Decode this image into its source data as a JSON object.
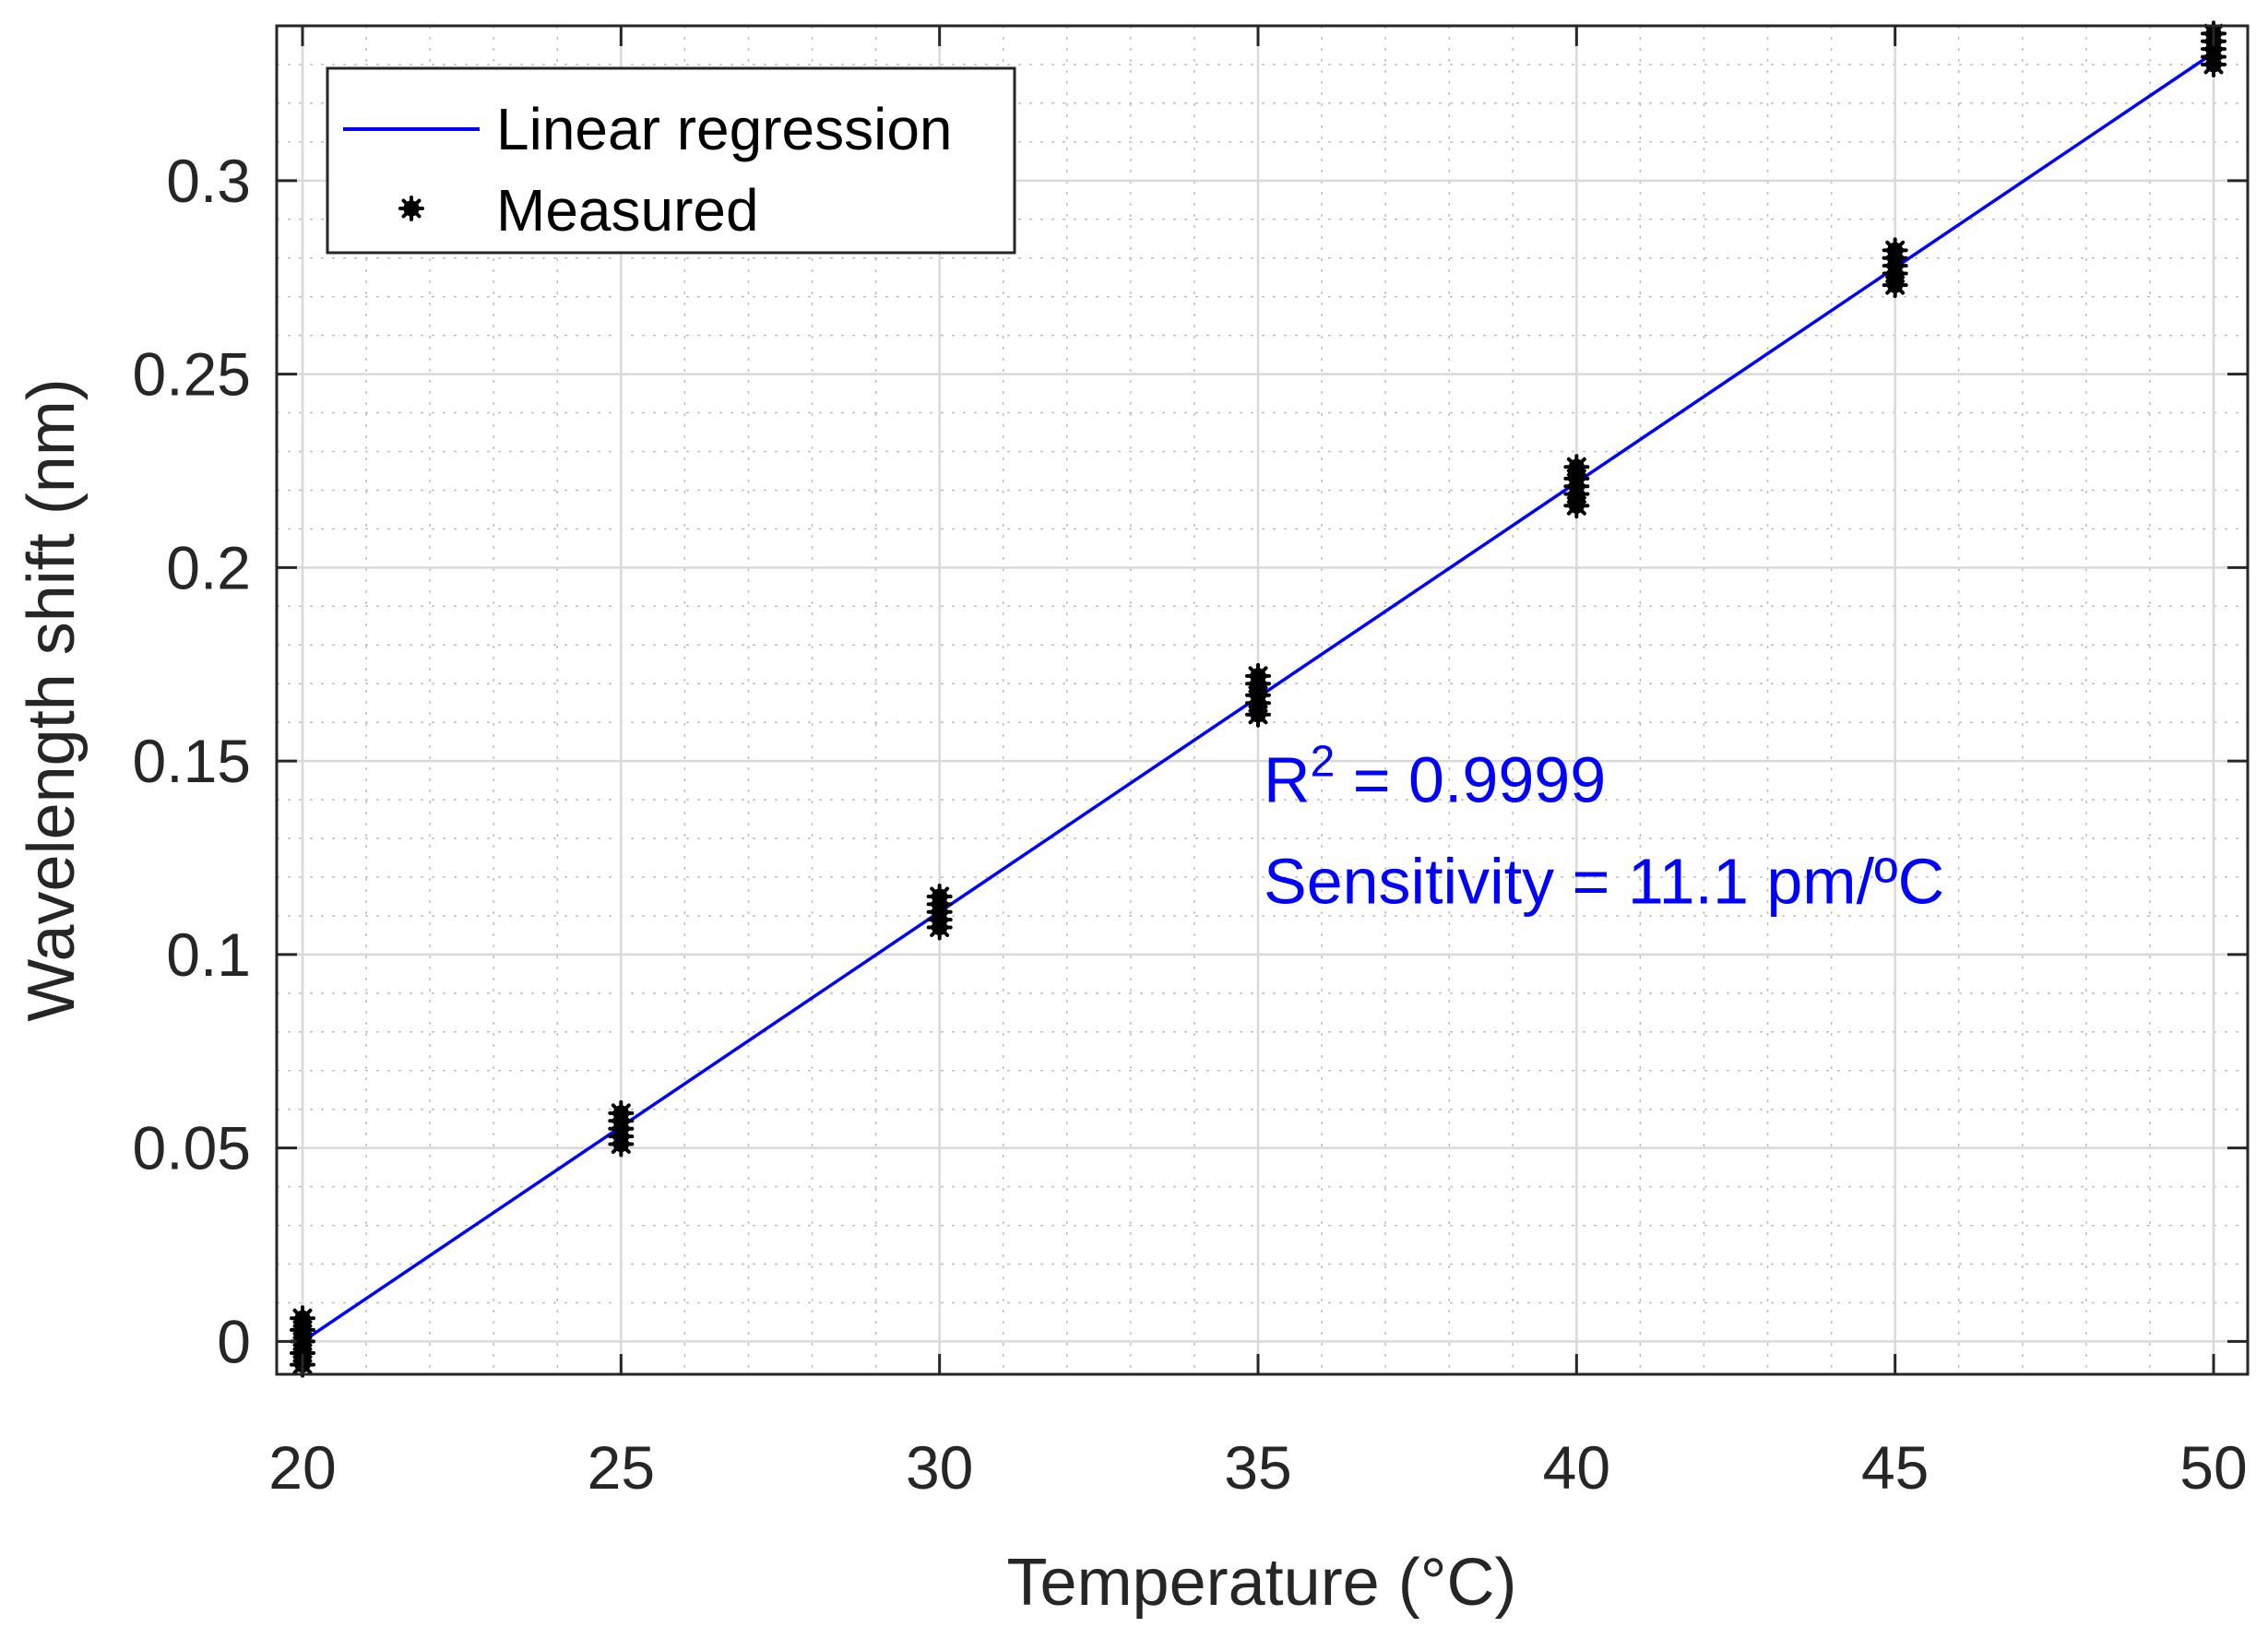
{
  "chart_data": {
    "type": "scatter",
    "title": "",
    "xlabel": "Temperature (°C)",
    "ylabel": "Wavelength shift (nm)",
    "xlim": [
      20,
      50
    ],
    "ylim": [
      -0.008,
      0.34
    ],
    "x_ticks": [
      20,
      25,
      30,
      35,
      40,
      45,
      50
    ],
    "y_ticks": [
      0,
      0.05,
      0.1,
      0.15,
      0.2,
      0.25,
      0.3
    ],
    "x_tick_labels": [
      "20",
      "25",
      "30",
      "35",
      "40",
      "45",
      "50"
    ],
    "y_tick_labels": [
      "0",
      "0.05",
      "0.1",
      "0.15",
      "0.2",
      "0.25",
      "0.3"
    ],
    "grid": true,
    "minor_grid": true,
    "legend_position": "top-left",
    "series": [
      {
        "name": "Linear regression",
        "kind": "line",
        "color": "#0000ff",
        "x": [
          20,
          50
        ],
        "y": [
          0.0,
          0.333
        ]
      },
      {
        "name": "Measured",
        "kind": "scatter",
        "marker": "asterisk",
        "color": "#000000",
        "x": [
          20,
          20,
          20,
          20,
          20,
          25,
          25,
          25,
          25,
          25,
          30,
          30,
          30,
          30,
          30,
          35,
          35,
          35,
          35,
          35,
          40,
          40,
          40,
          40,
          40,
          45,
          45,
          45,
          45,
          45,
          50,
          50,
          50,
          50,
          50
        ],
        "y": [
          -0.006,
          -0.003,
          0.0,
          0.003,
          0.006,
          0.051,
          0.053,
          0.055,
          0.057,
          0.059,
          0.107,
          0.109,
          0.111,
          0.113,
          0.115,
          0.162,
          0.165,
          0.167,
          0.17,
          0.172,
          0.216,
          0.219,
          0.221,
          0.223,
          0.226,
          0.273,
          0.276,
          0.278,
          0.28,
          0.282,
          0.33,
          0.332,
          0.334,
          0.336,
          0.338
        ]
      }
    ],
    "legend": {
      "line_label": "Linear regression",
      "marker_label": "Measured"
    },
    "annotations": {
      "r2_prefix": "R",
      "r2_superscript": "2",
      "r2_suffix": " = 0.9999",
      "sensitivity": "Sensitivity = 11.1 pm/ºC",
      "color": "#0000ff",
      "anchor_x": 35,
      "anchor_y": 0.148
    }
  }
}
